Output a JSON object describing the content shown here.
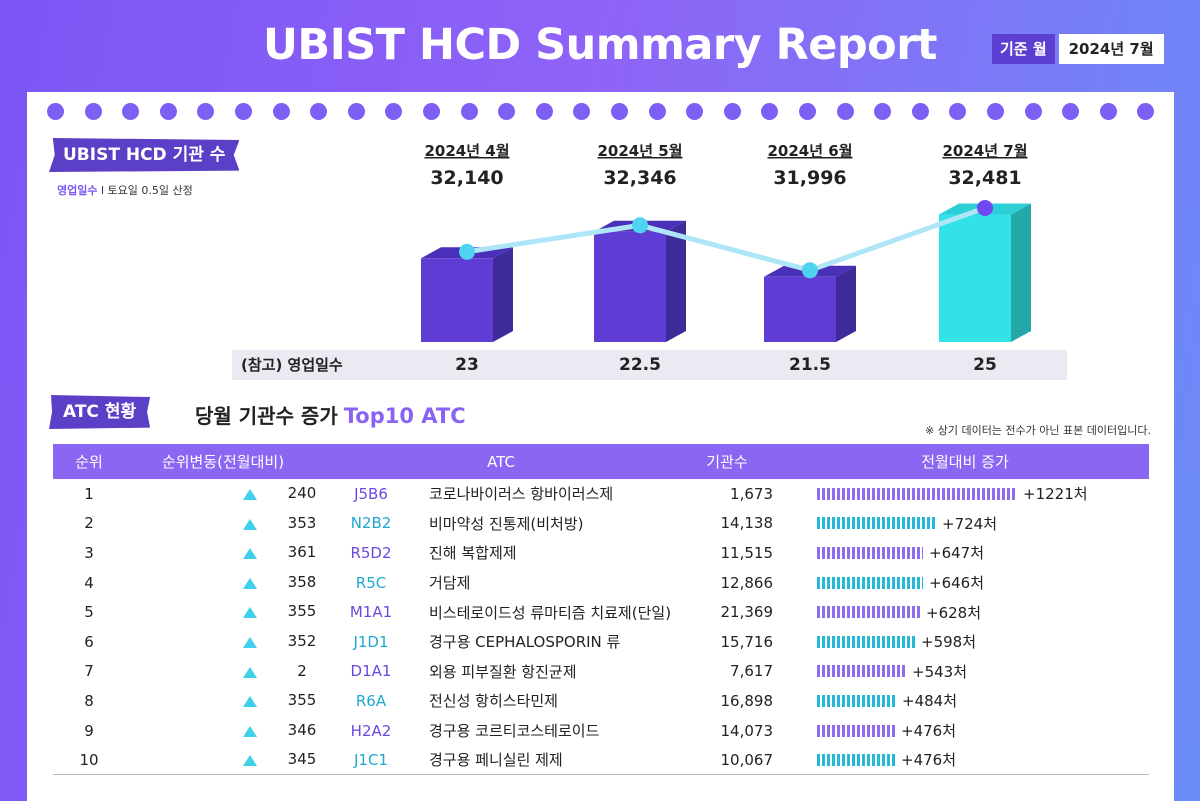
{
  "title": "UBIST HCD Summary Report",
  "base": {
    "label": "기준 월",
    "value": "2024년 7월"
  },
  "section1": {
    "tag": "UBIST HCD 기관 수",
    "note_highlight": "영업일수",
    "note_rest": " l 토요일 0.5일 산정",
    "ref_label": "(참고) 영업일수"
  },
  "chart_data": {
    "type": "bar",
    "categories": [
      "2024년 4월",
      "2024년 5월",
      "2024년 6월",
      "2024년 7월"
    ],
    "series": [
      {
        "values": [
          32140,
          32346,
          31996,
          32481
        ]
      }
    ],
    "value_labels": [
      "32,140",
      "32,346",
      "31,996",
      "32,481"
    ],
    "business_days": [
      "23",
      "22.5",
      "21.5",
      "25"
    ],
    "colors": {
      "bar": "#5f3cd4",
      "highlight_bar": "#33e2e8",
      "line": "#aee6f8",
      "point": "#4fd3f0",
      "highlight_point": "#6f48f0",
      "highlight_text": "#8a63f4"
    }
  },
  "section2": {
    "tag": "ATC 현황",
    "title": "당월 기관수 증가",
    "title_accent": "Top10 ATC",
    "disclaimer": "※ 상기 데이터는 전수가 아닌 표본 데이터입니다."
  },
  "table": {
    "headers": [
      "순위",
      "순위변동(전월대비)",
      "ATC",
      "기관수",
      "전월대비 증가"
    ],
    "rows": [
      {
        "rank": "1",
        "change": "240",
        "atc": "J5B6",
        "name": "코로나바이러스 항바이러스제",
        "count": "1,673",
        "inc": 1221,
        "inc_label": "+1221처"
      },
      {
        "rank": "2",
        "change": "353",
        "atc": "N2B2",
        "name": "비마약성 진통제(비처방)",
        "count": "14,138",
        "inc": 724,
        "inc_label": "+724처"
      },
      {
        "rank": "3",
        "change": "361",
        "atc": "R5D2",
        "name": "진해 복합제제",
        "count": "11,515",
        "inc": 647,
        "inc_label": "+647처"
      },
      {
        "rank": "4",
        "change": "358",
        "atc": "R5C",
        "name": "거담제",
        "count": "12,866",
        "inc": 646,
        "inc_label": "+646처"
      },
      {
        "rank": "5",
        "change": "355",
        "atc": "M1A1",
        "name": "비스테로이드성 류마티즘 치료제(단일)",
        "count": "21,369",
        "inc": 628,
        "inc_label": "+628처"
      },
      {
        "rank": "6",
        "change": "352",
        "atc": "J1D1",
        "name": "경구용 CEPHALOSPORIN 류",
        "count": "15,716",
        "inc": 598,
        "inc_label": "+598처"
      },
      {
        "rank": "7",
        "change": "2",
        "atc": "D1A1",
        "name": "외용 피부질환 항진균제",
        "count": "7,617",
        "inc": 543,
        "inc_label": "+543처"
      },
      {
        "rank": "8",
        "change": "355",
        "atc": "R6A",
        "name": "전신성 항히스타민제",
        "count": "16,898",
        "inc": 484,
        "inc_label": "+484처"
      },
      {
        "rank": "9",
        "change": "346",
        "atc": "H2A2",
        "name": "경구용 코르티코스테로이드",
        "count": "14,073",
        "inc": 476,
        "inc_label": "+476처"
      },
      {
        "rank": "10",
        "change": "345",
        "atc": "J1C1",
        "name": "경구용 페니실린 제제",
        "count": "10,067",
        "inc": 476,
        "inc_label": "+476처"
      }
    ],
    "colors": {
      "purple": "#8d6cf0",
      "cyan": "#26b8d8",
      "atc_purple": "#6b49e0",
      "atc_cyan": "#1fa8d0"
    }
  }
}
